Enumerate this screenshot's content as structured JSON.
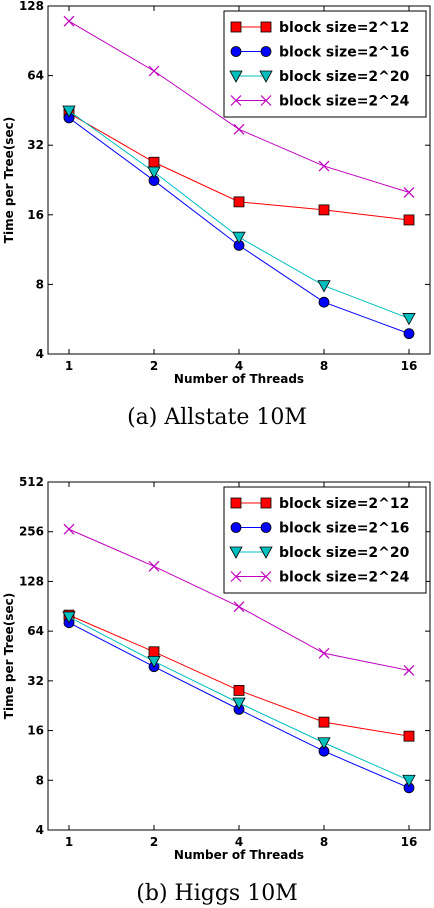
{
  "chart_data": [
    {
      "type": "line",
      "caption": "(a) Allstate 10M",
      "xlabel": "Number of Threads",
      "ylabel": "Time per Tree(sec)",
      "x": [
        1,
        2,
        4,
        8,
        16
      ],
      "x_tick_labels": [
        "1",
        "2",
        "4",
        "8",
        "16"
      ],
      "y_ticks": [
        4,
        8,
        16,
        32,
        64,
        128
      ],
      "y_tick_labels": [
        "4",
        "8",
        "16",
        "32",
        "64",
        "128"
      ],
      "ylim": [
        4,
        128
      ],
      "xscale": "log2",
      "yscale": "log2",
      "legend_position": "top-right",
      "series": [
        {
          "name": "block size=2^12",
          "color": "#ff0000",
          "marker": "square",
          "values": [
            44,
            27,
            18.2,
            16.8,
            15.2
          ]
        },
        {
          "name": "block size=2^16",
          "color": "#0000ff",
          "marker": "circle",
          "values": [
            42,
            22.5,
            11.8,
            6.7,
            4.9
          ]
        },
        {
          "name": "block size=2^20",
          "color": "#00bfbf",
          "marker": "triangle-down",
          "values": [
            45,
            24.5,
            12.8,
            7.9,
            5.7
          ]
        },
        {
          "name": "block size=2^24",
          "color": "#bf00bf",
          "marker": "x",
          "values": [
            110,
            67,
            37.5,
            26,
            20
          ]
        }
      ]
    },
    {
      "type": "line",
      "caption": "(b) Higgs 10M",
      "xlabel": "Number of Threads",
      "ylabel": "Time per Tree(sec)",
      "x": [
        1,
        2,
        4,
        8,
        16
      ],
      "x_tick_labels": [
        "1",
        "2",
        "4",
        "8",
        "16"
      ],
      "y_ticks": [
        4,
        8,
        16,
        32,
        64,
        128,
        256,
        512
      ],
      "y_tick_labels": [
        "4",
        "8",
        "16",
        "32",
        "64",
        "128",
        "256",
        "512"
      ],
      "ylim": [
        4,
        512
      ],
      "xscale": "log2",
      "yscale": "log2",
      "legend_position": "top-right",
      "series": [
        {
          "name": "block size=2^12",
          "color": "#ff0000",
          "marker": "square",
          "values": [
            80,
            48,
            28,
            18,
            14.8
          ]
        },
        {
          "name": "block size=2^16",
          "color": "#0000ff",
          "marker": "circle",
          "values": [
            72,
            39,
            21.5,
            12,
            7.2
          ]
        },
        {
          "name": "block size=2^20",
          "color": "#00bfbf",
          "marker": "triangle-down",
          "values": [
            78,
            42,
            23.5,
            13.5,
            8
          ]
        },
        {
          "name": "block size=2^24",
          "color": "#bf00bf",
          "marker": "x",
          "values": [
            265,
            158,
            90,
            47,
            37
          ]
        }
      ]
    }
  ]
}
